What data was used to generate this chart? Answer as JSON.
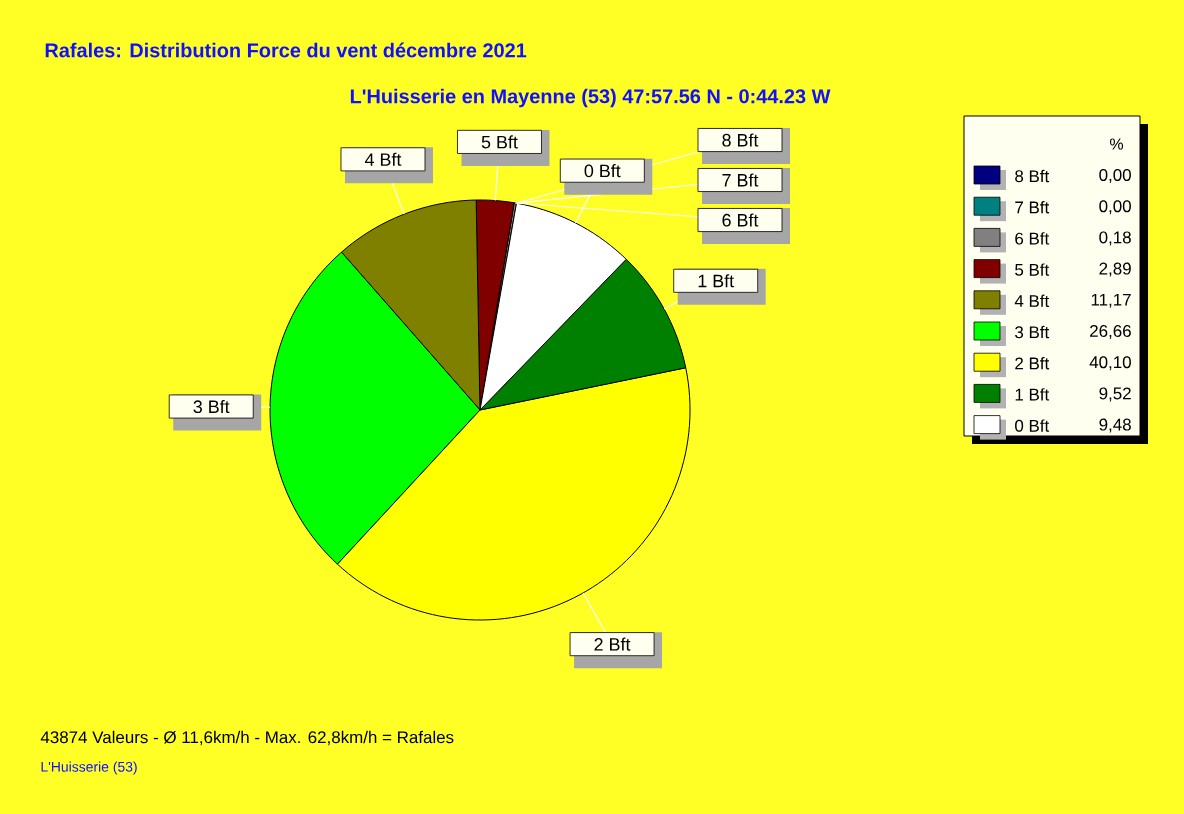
{
  "chart_data": {
    "type": "pie",
    "title": "Rafales: Distribution Force du vent  décembre 2021",
    "subtitle": "L'Huisserie en Mayenne (53) 47:57.56 N - 0:44.23 W",
    "categories": [
      "8 Bft",
      "7 Bft",
      "6 Bft",
      "5 Bft",
      "4 Bft",
      "3 Bft",
      "2 Bft",
      "1 Bft",
      "0 Bft"
    ],
    "values": [
      0.0,
      0.0,
      0.18,
      2.89,
      11.17,
      26.66,
      40.1,
      9.52,
      9.48
    ],
    "value_labels": [
      "0,00",
      "0,00",
      "0,18",
      "2,89",
      "11,17",
      "26,66",
      "40,10",
      "9,52",
      "9,48"
    ],
    "colors": [
      "#000080",
      "#008080",
      "#808080",
      "#800000",
      "#808000",
      "#00ff00",
      "#ffff00",
      "#008000",
      "#ffffff"
    ],
    "legend": "right",
    "legend_title": "%",
    "annotations": [
      "43874 Valeurs   -   Ø 11,6km/h  -  Max. 62,8km/h = Rafales",
      "L'Huisserie (53)"
    ]
  }
}
